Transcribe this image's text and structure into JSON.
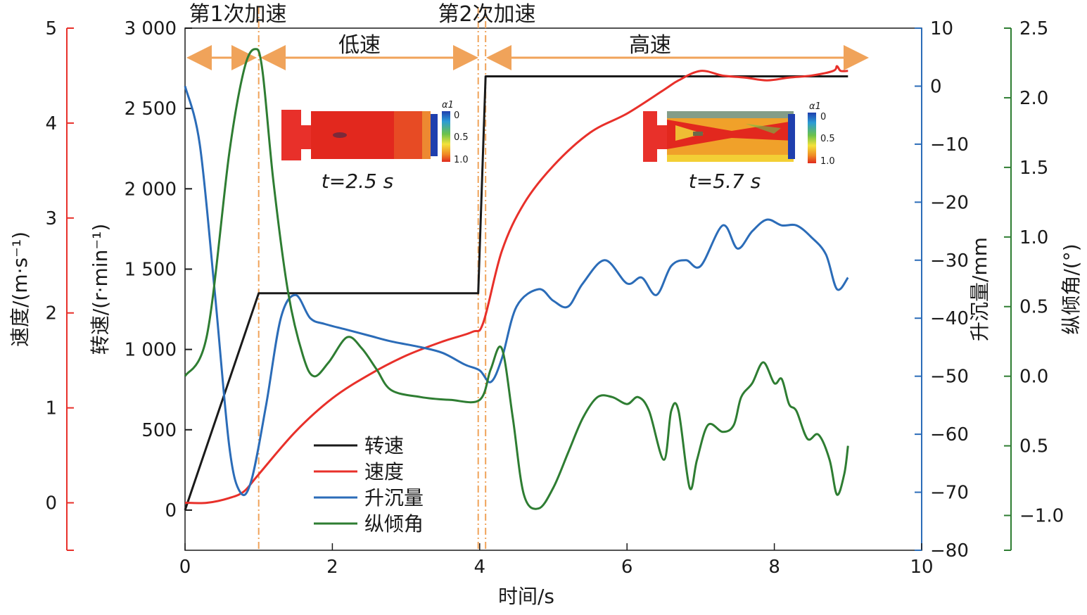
{
  "chart_data": {
    "type": "line",
    "xlabel": "时间/s",
    "xlim": [
      0,
      10
    ],
    "xticks": [
      "0",
      "2",
      "4",
      "6",
      "8",
      "10"
    ],
    "axes": {
      "speed": {
        "label": "速度/(m·s⁻¹)",
        "ticks": [
          "0",
          "1",
          "2",
          "3",
          "4",
          "5"
        ],
        "range": [
          -0.5,
          5
        ],
        "color": "#e8302a"
      },
      "rpm": {
        "label": "转速/(r·min⁻¹)",
        "ticks": [
          "0",
          "500",
          "1 000",
          "1 500",
          "2 000",
          "2 500",
          "3 000"
        ],
        "range": [
          -250,
          3000
        ],
        "color": "#1a1a1a"
      },
      "heave": {
        "label": "升沉量/mm",
        "ticks": [
          "10",
          "0",
          "−10",
          "−20",
          "−30",
          "−40",
          "−50",
          "−60",
          "−70",
          "−80"
        ],
        "range": [
          -80,
          10
        ],
        "color": "#2b6cb8"
      },
      "pitch": {
        "label": "纵倾角/(°)",
        "ticks": [
          "2.5",
          "2.0",
          "1.5",
          "1.0",
          "0.5",
          "0.0",
          "0.5",
          "−1.0"
        ],
        "range": [
          -1.25,
          2.5
        ],
        "color": "#2e7d32"
      }
    },
    "annotations": {
      "accel1": "第1次加速",
      "accel2": "第2次加速",
      "low": "低速",
      "high": "高速",
      "t1": "t=2.5 s",
      "t2": "t=5.7 s",
      "cbar_symbol": "α1",
      "cbar_ticks": [
        "0",
        "0.5",
        "1.0"
      ]
    },
    "vlines": [
      1.0,
      3.98,
      4.08
    ],
    "series": [
      {
        "name": "转速",
        "axis": "rpm",
        "color": "#1a1a1a",
        "x": [
          0,
          1.0,
          3.98,
          4.08,
          9.0
        ],
        "y": [
          0,
          1350,
          1350,
          2700,
          2700
        ]
      },
      {
        "name": "速度",
        "axis": "speed",
        "color": "#e8302a",
        "x": [
          0,
          0.3,
          0.6,
          0.8,
          1.0,
          1.5,
          2.0,
          2.5,
          3.0,
          3.5,
          3.9,
          4.05,
          4.3,
          4.6,
          5.0,
          5.5,
          6.0,
          6.5,
          6.7,
          7.0,
          7.3,
          7.6,
          7.9,
          8.2,
          8.5,
          8.8,
          8.85,
          8.9,
          9.0
        ],
        "y": [
          0.0,
          0.0,
          0.05,
          0.12,
          0.3,
          0.75,
          1.1,
          1.35,
          1.55,
          1.7,
          1.8,
          1.9,
          2.65,
          3.15,
          3.55,
          3.9,
          4.1,
          4.35,
          4.45,
          4.55,
          4.5,
          4.48,
          4.45,
          4.48,
          4.5,
          4.55,
          4.6,
          4.55,
          4.55
        ]
      },
      {
        "name": "升沉量",
        "axis": "heave",
        "color": "#2b6cb8",
        "x": [
          0,
          0.2,
          0.4,
          0.6,
          0.75,
          0.9,
          1.1,
          1.3,
          1.5,
          1.7,
          1.9,
          2.2,
          2.5,
          2.8,
          3.2,
          3.5,
          3.8,
          4.0,
          4.15,
          4.3,
          4.5,
          4.8,
          5.0,
          5.2,
          5.4,
          5.7,
          6.0,
          6.2,
          6.4,
          6.6,
          6.8,
          7.0,
          7.3,
          7.5,
          7.7,
          7.9,
          8.1,
          8.3,
          8.5,
          8.7,
          8.85,
          9.0
        ],
        "y": [
          0,
          -10,
          -35,
          -62,
          -70,
          -68,
          -55,
          -40,
          -36,
          -40,
          -41,
          -42,
          -43,
          -44,
          -45,
          -46,
          -48,
          -49,
          -51,
          -47,
          -38,
          -35,
          -37,
          -38,
          -34,
          -30,
          -34,
          -33,
          -36,
          -31,
          -30,
          -31,
          -24,
          -28,
          -25,
          -23,
          -24,
          -24,
          -26,
          -29,
          -35,
          -33
        ]
      },
      {
        "name": "纵倾角",
        "axis": "pitch",
        "color": "#2e7d32",
        "x": [
          0,
          0.3,
          0.6,
          0.8,
          0.95,
          1.05,
          1.2,
          1.4,
          1.6,
          1.75,
          1.95,
          2.2,
          2.4,
          2.6,
          2.8,
          3.2,
          3.6,
          4.0,
          4.15,
          4.3,
          4.45,
          4.6,
          4.8,
          5.0,
          5.2,
          5.4,
          5.6,
          5.8,
          6.0,
          6.15,
          6.3,
          6.5,
          6.6,
          6.7,
          6.85,
          6.95,
          7.1,
          7.3,
          7.45,
          7.55,
          7.7,
          7.85,
          8.0,
          8.1,
          8.2,
          8.3,
          8.45,
          8.6,
          8.75,
          8.85,
          8.95,
          9.0
        ],
        "y": [
          0.0,
          0.3,
          1.6,
          2.2,
          2.35,
          2.2,
          1.4,
          0.6,
          0.15,
          0.0,
          0.1,
          0.28,
          0.2,
          0.05,
          -0.1,
          -0.15,
          -0.17,
          -0.17,
          0.05,
          0.2,
          -0.3,
          -0.85,
          -0.95,
          -0.8,
          -0.55,
          -0.3,
          -0.15,
          -0.15,
          -0.2,
          -0.15,
          -0.25,
          -0.6,
          -0.25,
          -0.25,
          -0.8,
          -0.6,
          -0.35,
          -0.4,
          -0.35,
          -0.15,
          -0.05,
          0.1,
          -0.05,
          -0.02,
          -0.2,
          -0.25,
          -0.45,
          -0.42,
          -0.6,
          -0.85,
          -0.7,
          -0.5
        ]
      }
    ],
    "legend": {
      "placement": "lower-center",
      "entries": [
        "转速",
        "速度",
        "升沉量",
        "纵倾角"
      ]
    }
  }
}
